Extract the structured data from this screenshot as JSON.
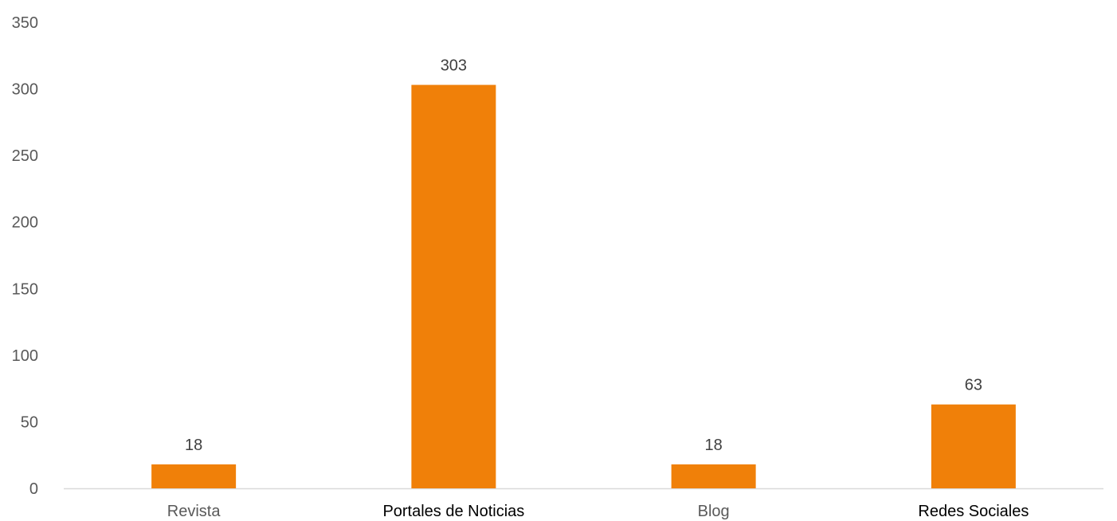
{
  "chart_data": {
    "type": "bar",
    "title": "",
    "xlabel": "",
    "ylabel": "",
    "categories": [
      "Revista",
      "Portales de Noticias",
      "Blog",
      "Redes Sociales"
    ],
    "values": [
      18,
      303,
      18,
      63
    ],
    "data_labels": [
      "18",
      "303",
      "18",
      "63"
    ],
    "ylim": [
      0,
      350
    ],
    "yticks": [
      0,
      50,
      100,
      150,
      200,
      250,
      300,
      350
    ],
    "ytick_labels": [
      "0",
      "50",
      "100",
      "150",
      "200",
      "250",
      "300",
      "350"
    ],
    "grid": false,
    "legend": "none",
    "bar_color": "#F08009",
    "axis_color": "#D9D9D9",
    "category_label_colors": [
      "#595959",
      "#000000",
      "#595959",
      "#000000"
    ]
  }
}
